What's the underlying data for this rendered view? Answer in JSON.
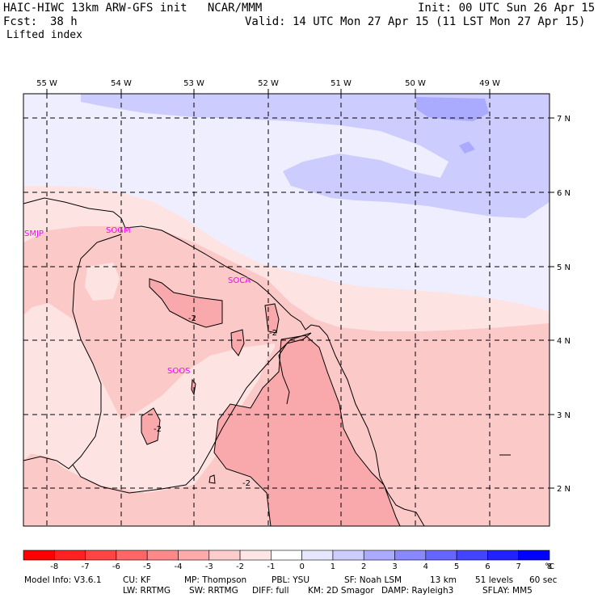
{
  "header": {
    "model_line": "HAIC-HIWC 13km ARW-GFS init   NCAR/MMM",
    "init": "Init: 00 UTC Sun 26 Apr 15",
    "fcst_label": "Fcst:",
    "fcst_value": "38 h",
    "valid": "Valid: 14 UTC Mon 27 Apr 15 (11 LST Mon 27 Apr 15)",
    "field": "Lifted index"
  },
  "map": {
    "lon_labels": [
      "55 W",
      "54 W",
      "53 W",
      "52 W",
      "51 W",
      "50 W",
      "49 W"
    ],
    "lat_labels": [
      "7 N",
      "6 N",
      "5 N",
      "4 N",
      "3 N",
      "2 N"
    ],
    "stations": [
      "SMJP",
      "SOGM",
      "SOCA",
      "SOOS"
    ],
    "contour_labels": [
      "-2",
      "-2",
      "-2",
      "-2"
    ],
    "colors": {
      "red_strong": "#f9a9ab",
      "red_mid": "#fcc9c9",
      "red_light": "#fde4e3",
      "blue_light": "#eeeeff",
      "blue_mid": "#ccccff",
      "blue_strong": "#aaaaff",
      "station": "#ff00ff"
    }
  },
  "colorbar": {
    "colors": [
      "#ff0000",
      "#ff2222",
      "#ff4444",
      "#ff6666",
      "#ff8888",
      "#ffaaaa",
      "#ffcccc",
      "#ffe6e6",
      "#ffffff",
      "#e6e6ff",
      "#ccccff",
      "#aaaaff",
      "#8888ff",
      "#6666ff",
      "#4444ff",
      "#2222ff",
      "#0000ff"
    ],
    "tick_labels": [
      "-8",
      "-7",
      "-6",
      "-5",
      "-4",
      "-3",
      "-2",
      "-1",
      "0",
      "1",
      "2",
      "3",
      "4",
      "5",
      "6",
      "7",
      "8"
    ],
    "unit": "°C"
  },
  "footer": {
    "line1": [
      "Model Info: V3.6.1",
      "CU: KF",
      "MP: Thompson",
      "PBL: YSU",
      "SF: Noah LSM",
      "13 km",
      "51 levels",
      "60 sec"
    ],
    "line2": [
      "LW: RRTMG",
      "SW: RRTMG",
      "DIFF: full",
      "KM: 2D Smagor",
      "DAMP: Rayleigh3",
      "SFLAY: MM5"
    ]
  }
}
